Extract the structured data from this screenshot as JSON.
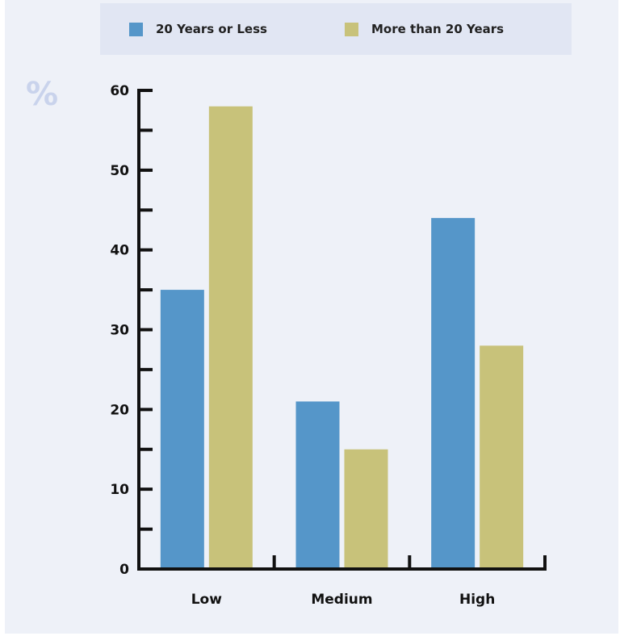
{
  "chart_data": {
    "type": "bar",
    "categories": [
      "Low",
      "Medium",
      "High"
    ],
    "series": [
      {
        "name": "20 Years or Less",
        "values": [
          35,
          21,
          44
        ]
      },
      {
        "name": "More than 20 Years",
        "values": [
          58,
          15,
          28
        ]
      }
    ],
    "ylim": [
      0,
      60
    ],
    "y_ticks": [
      "0",
      "10",
      "20",
      "30",
      "40",
      "50",
      "60"
    ],
    "y_unit": "%",
    "colors": [
      "#5596c9",
      "#c8c27a"
    ],
    "legend_position": "top",
    "grid": false
  }
}
